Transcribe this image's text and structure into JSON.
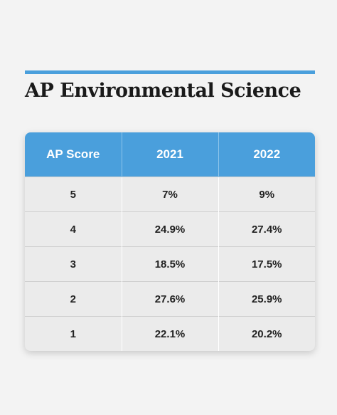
{
  "header": {
    "title": "AP Environmental Science"
  },
  "table": {
    "columns": [
      "AP Score",
      "2021",
      "2022"
    ],
    "rows": [
      [
        "5",
        "7%",
        "9%"
      ],
      [
        "4",
        "24.9%",
        "27.4%"
      ],
      [
        "3",
        "18.5%",
        "17.5%"
      ],
      [
        "2",
        "27.6%",
        "25.9%"
      ],
      [
        "1",
        "22.1%",
        "20.2%"
      ]
    ]
  }
}
